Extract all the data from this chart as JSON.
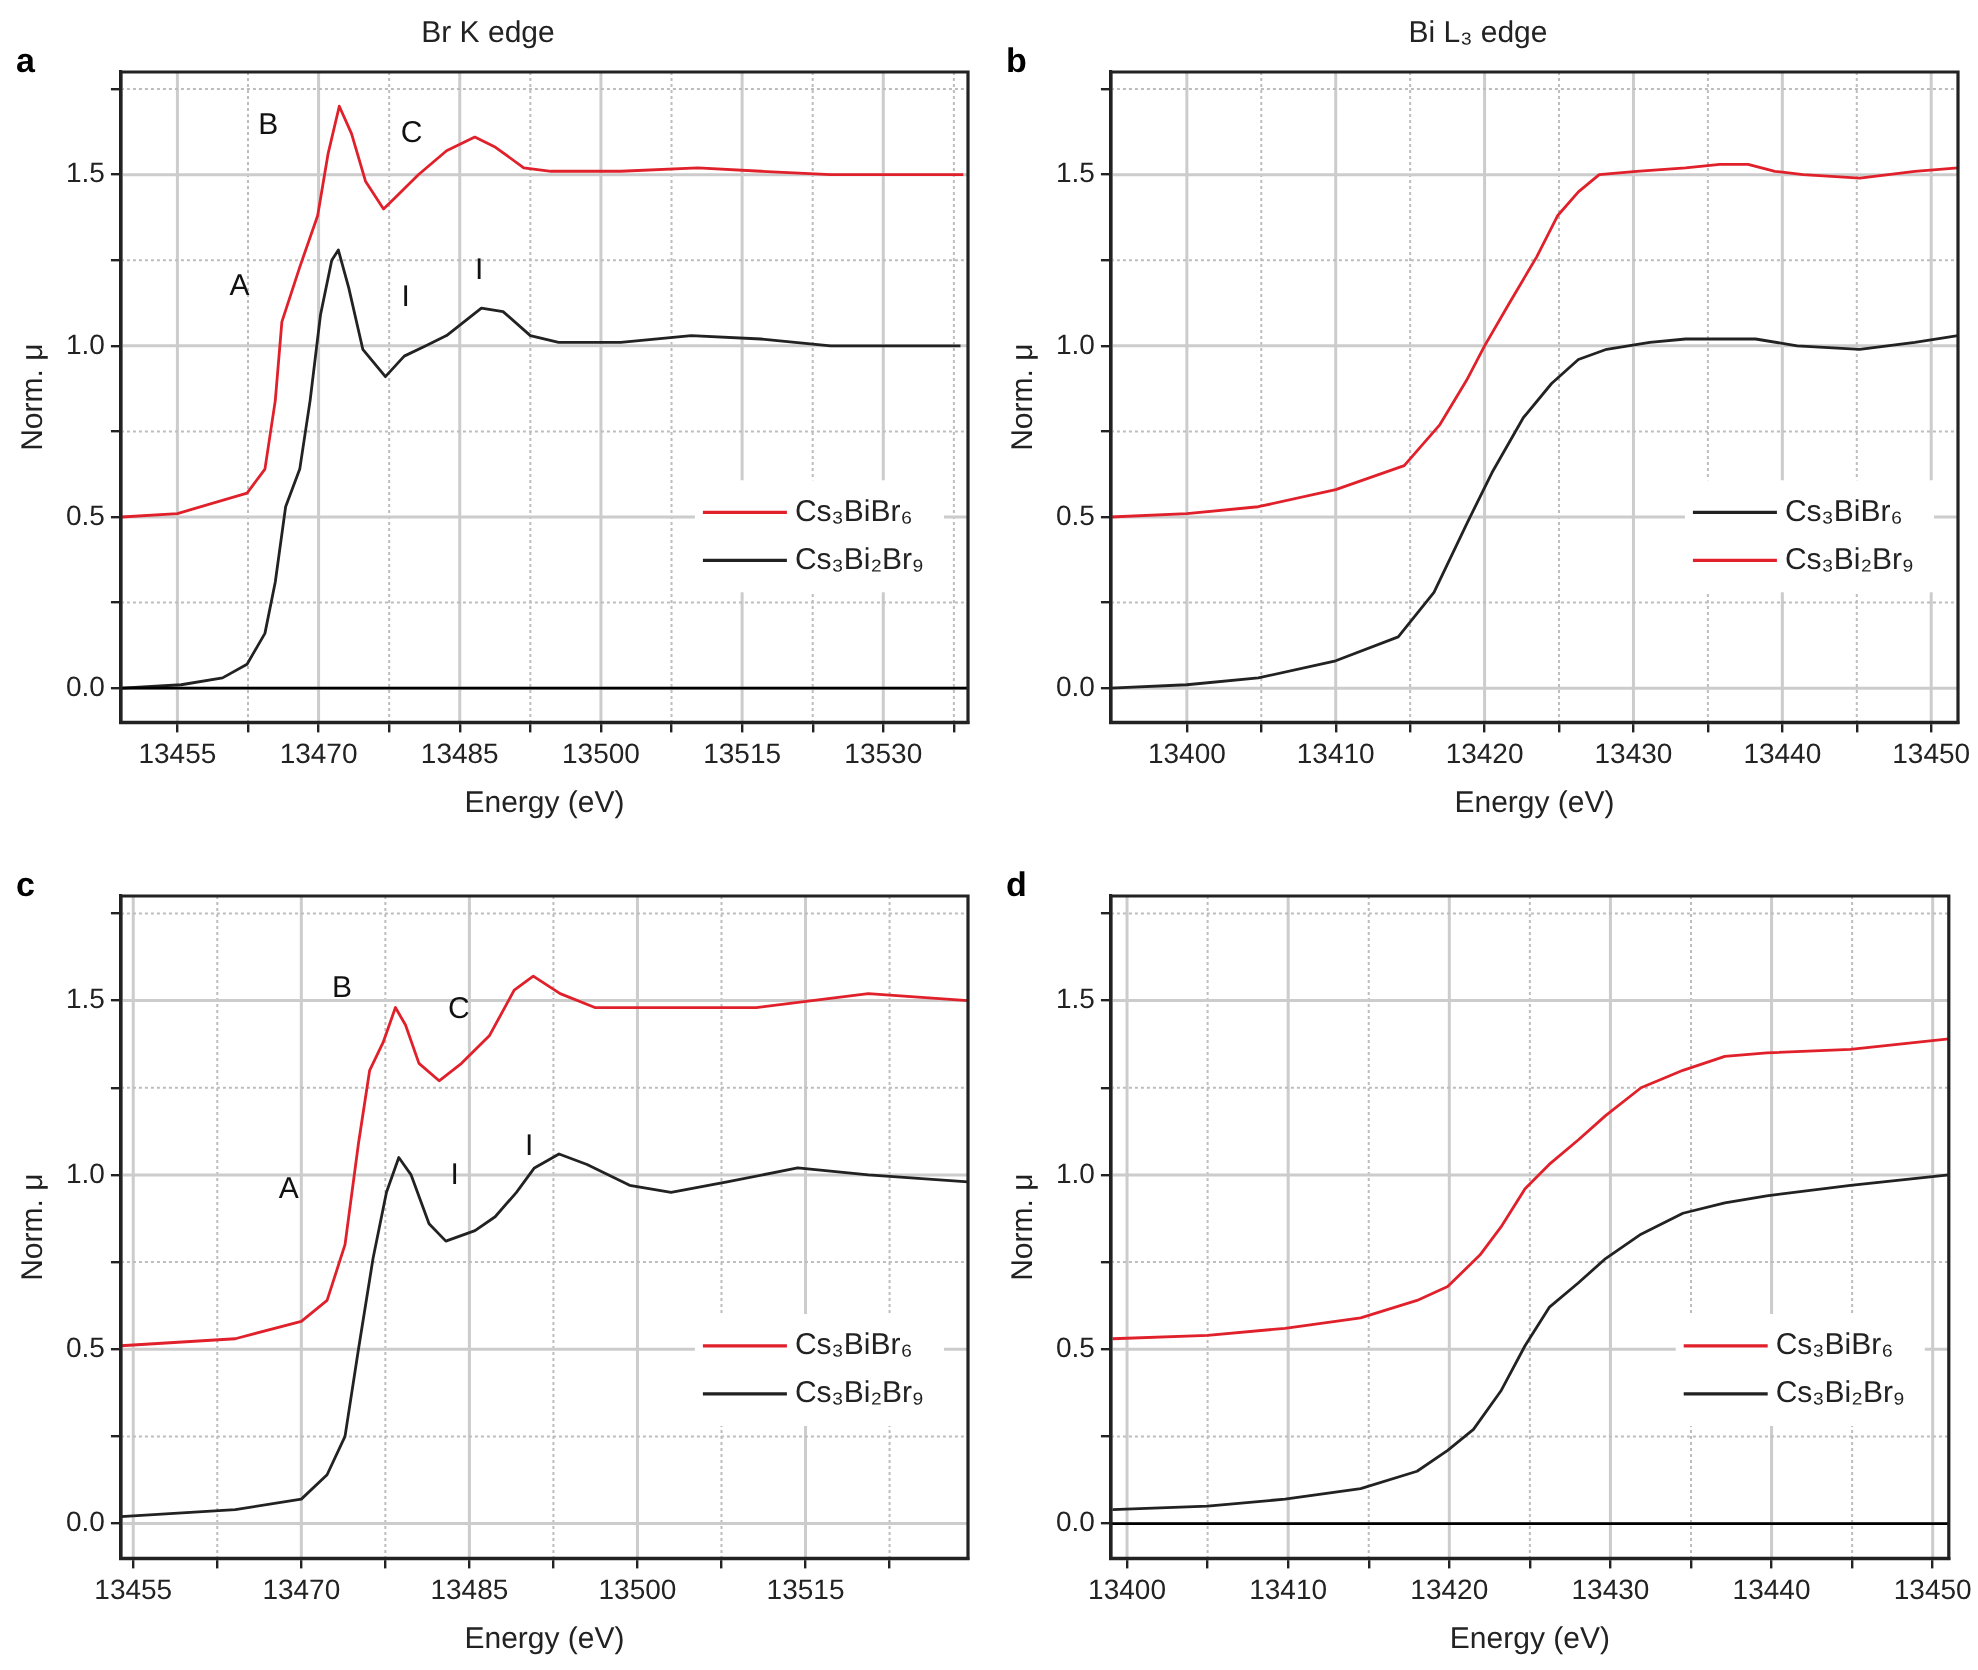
{
  "chart_data": [
    {
      "type": "line",
      "title": "Br K edge",
      "xlabel": "Energy (eV)",
      "ylabel": "Norm. μ",
      "xlim": [
        13449,
        13539
      ],
      "ylim": [
        -0.1,
        1.8
      ],
      "xticks": [
        13455,
        {
          "value": 13462.5,
          "label": null
        },
        13470,
        {
          "value": 13477.5,
          "label": null
        },
        13485,
        {
          "value": 13492.5,
          "label": null
        },
        13500,
        {
          "value": 13507.5,
          "label": null
        },
        13515,
        {
          "value": 13522.5,
          "label": null
        },
        13530,
        {
          "value": 13537.5,
          "label": null
        }
      ],
      "yticks": [
        {
          "value": 0,
          "label": "0.0"
        },
        {
          "value": 0.25,
          "label": null
        },
        {
          "value": 0.5,
          "label": "0.5"
        },
        {
          "value": 0.75,
          "label": null
        },
        {
          "value": 1,
          "label": "1.0"
        },
        {
          "value": 1.25,
          "label": null
        },
        {
          "value": 1.5,
          "label": "1.5"
        },
        {
          "value": 1.75,
          "label": null
        }
      ],
      "grid": true,
      "legend": "bottom right",
      "ref_lines": [
        {
          "axis": "y",
          "value": 0,
          "color": "#000000"
        }
      ],
      "annotations": [
        "a",
        "A",
        "B",
        "C",
        "I",
        "I"
      ],
      "series": [
        {
          "name": "Cs₃BiBr₆",
          "color": "#e0202a",
          "x": [
            13449.1,
            13455,
            13462.4,
            13464.3,
            13465.4,
            13466.1,
            13468,
            13469.9,
            13471,
            13472.2,
            13473.5,
            13475,
            13476.9,
            13478.4,
            13480.6,
            13483.6,
            13486.6,
            13488.8,
            13491.8,
            13494.7,
            13502.1,
            13510.3,
            13517,
            13524.4,
            13538.5
          ],
          "values": [
            0.5,
            0.51,
            0.57,
            0.64,
            0.84,
            1.07,
            1.23,
            1.38,
            1.56,
            1.7,
            1.62,
            1.48,
            1.4,
            1.44,
            1.5,
            1.57,
            1.61,
            1.58,
            1.52,
            1.51,
            1.51,
            1.52,
            1.51,
            1.5,
            1.5
          ]
        },
        {
          "name": "Cs₃Bi₂Br₉",
          "color": "#222222",
          "x": [
            13449.1,
            13455.4,
            13459.8,
            13462.4,
            13464.3,
            13465.4,
            13466.5,
            13468,
            13469.1,
            13470.2,
            13471.4,
            13472.1,
            13473.2,
            13474.7,
            13477.1,
            13479.1,
            13481.4,
            13483.6,
            13487.3,
            13489.6,
            13492.5,
            13495.5,
            13502.1,
            13509.6,
            13517,
            13524.4,
            13538.2
          ],
          "values": [
            0,
            0.01,
            0.03,
            0.07,
            0.16,
            0.31,
            0.53,
            0.64,
            0.84,
            1.09,
            1.25,
            1.28,
            1.17,
            0.99,
            0.91,
            0.97,
            1,
            1.03,
            1.11,
            1.1,
            1.03,
            1.01,
            1.01,
            1.03,
            1.02,
            1,
            1
          ]
        }
      ]
    },
    {
      "type": "line",
      "title": "Bi L₃ edge",
      "xlabel": "Energy (eV)",
      "ylabel": "Norm. μ",
      "xlim": [
        13394.9,
        13451.8
      ],
      "ylim": [
        -0.1,
        1.8
      ],
      "xticks": [
        13400,
        {
          "value": 13405,
          "label": null
        },
        13410,
        {
          "value": 13415,
          "label": null
        },
        13420,
        {
          "value": 13425,
          "label": null
        },
        13430,
        {
          "value": 13435,
          "label": null
        },
        13440,
        {
          "value": 13445,
          "label": null
        },
        13450
      ],
      "yticks": [
        {
          "value": 0,
          "label": "0.0"
        },
        {
          "value": 0.25,
          "label": null
        },
        {
          "value": 0.5,
          "label": "0.5"
        },
        {
          "value": 0.75,
          "label": null
        },
        {
          "value": 1,
          "label": "1.0"
        },
        {
          "value": 1.25,
          "label": null
        },
        {
          "value": 1.5,
          "label": "1.5"
        },
        {
          "value": 1.75,
          "label": null
        }
      ],
      "grid": true,
      "legend": "bottom right",
      "annotations": [
        "b"
      ],
      "series": [
        {
          "name": "Cs₃BiBr₆",
          "color": "#222222",
          "x": [
            13394.9,
            13400,
            13404.8,
            13410,
            13414.2,
            13416.6,
            13418.8,
            13420.5,
            13422.6,
            13424.5,
            13426.3,
            13428.2,
            13431.1,
            13433.5,
            13435.8,
            13438.2,
            13441,
            13445.2,
            13448.9,
            13451.8
          ],
          "values": [
            0,
            0.01,
            0.03,
            0.08,
            0.15,
            0.28,
            0.48,
            0.63,
            0.79,
            0.89,
            0.96,
            0.99,
            1.01,
            1.02,
            1.02,
            1.02,
            1,
            0.99,
            1.01,
            1.03
          ]
        },
        {
          "name": "Cs₃Bi₂Br₉",
          "color": "#e0202a",
          "x": [
            13394.9,
            13400,
            13404.8,
            13410,
            13414.6,
            13417,
            13418.8,
            13420,
            13421.6,
            13423.5,
            13424.9,
            13426.3,
            13427.7,
            13430.2,
            13433.5,
            13435.8,
            13437.7,
            13439.5,
            13441.4,
            13445.2,
            13448.9,
            13451.8
          ],
          "values": [
            0.5,
            0.51,
            0.53,
            0.58,
            0.65,
            0.77,
            0.9,
            1,
            1.12,
            1.26,
            1.38,
            1.45,
            1.5,
            1.51,
            1.52,
            1.53,
            1.53,
            1.51,
            1.5,
            1.49,
            1.51,
            1.52
          ]
        }
      ]
    },
    {
      "type": "line",
      "xlabel": "Energy (eV)",
      "ylabel": "Norm. μ",
      "xlim": [
        13453.9,
        13529.5
      ],
      "ylim": [
        -0.1,
        1.8
      ],
      "xticks": [
        13455,
        {
          "value": 13462.5,
          "label": null
        },
        13470,
        {
          "value": 13477.5,
          "label": null
        },
        13485,
        {
          "value": 13492.5,
          "label": null
        },
        13500,
        {
          "value": 13507.5,
          "label": null
        },
        13515,
        {
          "value": 13522.5,
          "label": null
        }
      ],
      "yticks": [
        {
          "value": 0,
          "label": "0.0"
        },
        {
          "value": 0.25,
          "label": null
        },
        {
          "value": 0.5,
          "label": "0.5"
        },
        {
          "value": 0.75,
          "label": null
        },
        {
          "value": 1,
          "label": "1.0"
        },
        {
          "value": 1.25,
          "label": null
        },
        {
          "value": 1.5,
          "label": "1.5"
        },
        {
          "value": 1.75,
          "label": null
        }
      ],
      "grid": true,
      "legend": "bottom right",
      "annotations": [
        "c",
        "A",
        "B",
        "C",
        "I",
        "I"
      ],
      "series": [
        {
          "name": "Cs₃BiBr₆",
          "color": "#e0202a",
          "x": [
            13453.9,
            13464.1,
            13470,
            13472.3,
            13473.9,
            13475.1,
            13476.1,
            13477.3,
            13478.4,
            13479.3,
            13480.5,
            13482.3,
            13484.3,
            13486.8,
            13489,
            13490.7,
            13493.1,
            13496.2,
            13501.8,
            13510.6,
            13520.6,
            13529.5
          ],
          "values": [
            0.51,
            0.53,
            0.58,
            0.64,
            0.8,
            1.09,
            1.3,
            1.38,
            1.48,
            1.43,
            1.32,
            1.27,
            1.32,
            1.4,
            1.53,
            1.57,
            1.52,
            1.48,
            1.48,
            1.48,
            1.52,
            1.5
          ]
        },
        {
          "name": "Cs₃Bi₂Br₉",
          "color": "#222222",
          "x": [
            13453.9,
            13464.1,
            13470,
            13472.3,
            13473.9,
            13475.1,
            13476.4,
            13477.6,
            13478.7,
            13479.8,
            13481.4,
            13482.9,
            13485.5,
            13487.3,
            13489.2,
            13490.8,
            13493,
            13495.5,
            13499.3,
            13503,
            13508,
            13514.3,
            13520.6,
            13529.5
          ],
          "values": [
            0.02,
            0.04,
            0.07,
            0.14,
            0.25,
            0.5,
            0.76,
            0.95,
            1.05,
            1,
            0.86,
            0.81,
            0.84,
            0.88,
            0.95,
            1.02,
            1.06,
            1.03,
            0.97,
            0.95,
            0.98,
            1.02,
            1,
            0.98
          ]
        }
      ]
    },
    {
      "type": "line",
      "xlabel": "Energy (eV)",
      "ylabel": "Norm. μ",
      "xlim": [
        13399,
        13451
      ],
      "ylim": [
        -0.1,
        1.8
      ],
      "xticks": [
        13400,
        {
          "value": 13405,
          "label": null
        },
        13410,
        {
          "value": 13415,
          "label": null
        },
        13420,
        {
          "value": 13425,
          "label": null
        },
        13430,
        {
          "value": 13435,
          "label": null
        },
        13440,
        {
          "value": 13445,
          "label": null
        },
        13450
      ],
      "yticks": [
        {
          "value": 0,
          "label": "0.0"
        },
        {
          "value": 0.25,
          "label": null
        },
        {
          "value": 0.5,
          "label": "0.5"
        },
        {
          "value": 0.75,
          "label": null
        },
        {
          "value": 1,
          "label": "1.0"
        },
        {
          "value": 1.25,
          "label": null
        },
        {
          "value": 1.5,
          "label": "1.5"
        },
        {
          "value": 1.75,
          "label": null
        }
      ],
      "grid": true,
      "legend": "bottom right",
      "ref_lines": [
        {
          "axis": "y",
          "value": 0,
          "color": "#000000"
        }
      ],
      "annotations": [
        "d"
      ],
      "series": [
        {
          "name": "Cs₃BiBr₆",
          "color": "#e0202a",
          "x": [
            13399.1,
            13405,
            13409.8,
            13414.5,
            13418,
            13419.9,
            13421.9,
            13423.2,
            13424.7,
            13426.2,
            13428,
            13429.7,
            13431.9,
            13434.5,
            13437.1,
            13439.7,
            13444.9,
            13451
          ],
          "values": [
            0.53,
            0.54,
            0.56,
            0.59,
            0.64,
            0.68,
            0.77,
            0.85,
            0.96,
            1.03,
            1.1,
            1.17,
            1.25,
            1.3,
            1.34,
            1.35,
            1.36,
            1.39
          ]
        },
        {
          "name": "Cs₃Bi₂Br₉",
          "color": "#222222",
          "x": [
            13399.1,
            13405,
            13409.8,
            13414.5,
            13418,
            13419.9,
            13421.5,
            13423.2,
            13424.7,
            13426.2,
            13428,
            13429.7,
            13431.9,
            13434.5,
            13437.1,
            13439.7,
            13444.9,
            13451
          ],
          "values": [
            0.04,
            0.05,
            0.07,
            0.1,
            0.15,
            0.21,
            0.27,
            0.38,
            0.51,
            0.62,
            0.69,
            0.76,
            0.83,
            0.89,
            0.92,
            0.94,
            0.97,
            1
          ]
        }
      ]
    }
  ]
}
